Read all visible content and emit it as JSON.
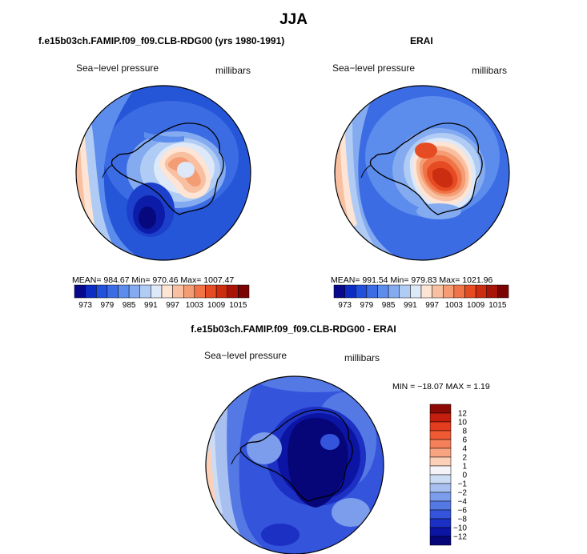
{
  "figure": {
    "title": "JJA",
    "panels": [
      {
        "heading": "f.e15b03ch.FAMIP.f09_f09.CLB-RDG00 (yrs 1980-1991)",
        "variable": "Sea−level pressure",
        "units": "millibars",
        "stats": "MEAN= 984.67   Min= 970.46   Max= 1007.47"
      },
      {
        "heading": "ERAI",
        "variable": "Sea−level pressure",
        "units": "millibars",
        "stats": "MEAN= 991.54   Min= 979.83   Max= 1021.96"
      },
      {
        "heading": "f.e15b03ch.FAMIP.f09_f09.CLB-RDG00 - ERAI",
        "variable": "Sea−level pressure",
        "units": "millibars",
        "stats": "MIN = −18.07  MAX =    1.19"
      }
    ],
    "horizontal_colorbar": {
      "labels": [
        "973",
        "979",
        "985",
        "991",
        "997",
        "1003",
        "1009",
        "1015"
      ],
      "colors": [
        "#08088c",
        "#0c2cc4",
        "#2050dc",
        "#3c6ce4",
        "#5c8cec",
        "#84aaf0",
        "#b0ccf4",
        "#dde8f8",
        "#fde4d4",
        "#f8c0a0",
        "#f49c74",
        "#f07448",
        "#e64c24",
        "#cc2c10",
        "#a81408",
        "#7a0404"
      ]
    },
    "vertical_colorbar": {
      "labels": [
        "12",
        "10",
        "8",
        "6",
        "4",
        "2",
        "1",
        "0",
        "−1",
        "−2",
        "−4",
        "−6",
        "−8",
        "−10",
        "−12"
      ],
      "colors": [
        "#8c0a06",
        "#c41e0e",
        "#e43c1e",
        "#f05a32",
        "#f4805a",
        "#f8a480",
        "#fcd0b8",
        "#f4f4f8",
        "#ccdcf4",
        "#a8c0f0",
        "#7c9cec",
        "#5478e4",
        "#3454dc",
        "#1c30c4",
        "#0c14a4",
        "#060678"
      ]
    }
  }
}
